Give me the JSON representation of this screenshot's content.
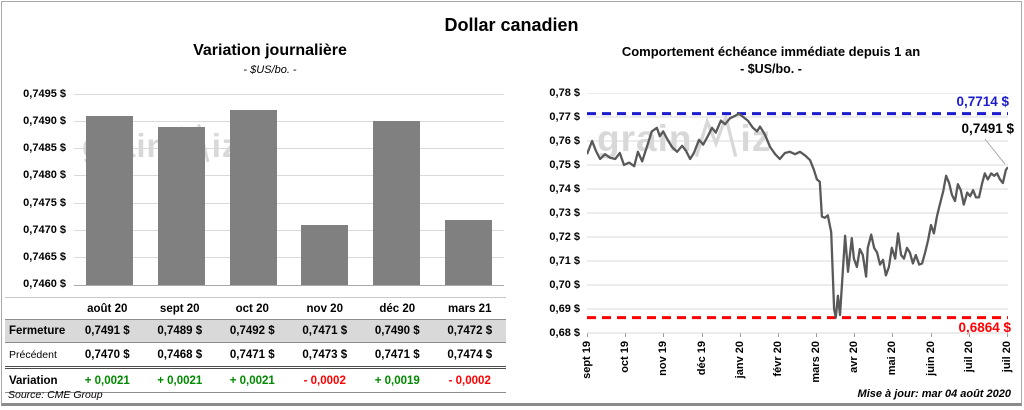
{
  "title": "Dollar canadien",
  "source": "Source: CME Group",
  "updated": "Mise à jour: mar 04 août 2020",
  "watermark": {
    "pre": "grain",
    "post": "iz"
  },
  "colors": {
    "bar": "#808080",
    "line": "#595959",
    "grid": "#D9D9D9",
    "max_line": "#1C1CCE",
    "min_line": "#FF0000",
    "positive": "#008A00",
    "negative": "#FF0000",
    "table_shade": "#D9D9D9"
  },
  "table": {
    "rows": [
      {
        "label": "Fermeture",
        "values": [
          "0,7491 $",
          "0,7489 $",
          "0,7492 $",
          "0,7471 $",
          "0,7490 $",
          "0,7472 $"
        ]
      },
      {
        "label": "Précédent",
        "values": [
          "0,7470 $",
          "0,7468 $",
          "0,7471 $",
          "0,7473 $",
          "0,7471 $",
          "0,7474 $"
        ]
      },
      {
        "label": "Variation",
        "values": [
          {
            "text": "+ 0,0021",
            "trend": "up"
          },
          {
            "text": "+ 0,0021",
            "trend": "up"
          },
          {
            "text": "+ 0,0021",
            "trend": "up"
          },
          {
            "text": "- 0,0002",
            "trend": "down"
          },
          {
            "text": "+ 0,0019",
            "trend": "up"
          },
          {
            "text": "- 0,0002",
            "trend": "down"
          }
        ]
      }
    ]
  },
  "chart_data": [
    {
      "type": "bar",
      "title": "Variation journalière",
      "subtitle": "- $US/bo. -",
      "categories": [
        "août 20",
        "sept 20",
        "oct 20",
        "nov 20",
        "déc 20",
        "mars 21"
      ],
      "values": [
        0.7491,
        0.7489,
        0.7492,
        0.7471,
        0.749,
        0.7472
      ],
      "ylim": [
        0.746,
        0.7495
      ],
      "ytick_labels": [
        "0,7495 $",
        "0,7490 $",
        "0,7485 $",
        "0,7480 $",
        "0,7475 $",
        "0,7470 $",
        "0,7465 $",
        "0,7460 $"
      ],
      "grid": true,
      "legend": false
    },
    {
      "type": "line",
      "title": "Comportement échéance immédiate depuis 1 an",
      "subtitle": "- $US/bo. -",
      "x_ticks": [
        "sept 19",
        "oct 19",
        "nov 19",
        "déc 19",
        "janv 20",
        "févr 20",
        "mars 20",
        "avr 20",
        "mai 20",
        "juin 20",
        "juil 20",
        "juil 20"
      ],
      "ylim": [
        0.68,
        0.78
      ],
      "ytick_labels": [
        "0,78 $",
        "0,77 $",
        "0,76 $",
        "0,75 $",
        "0,74 $",
        "0,73 $",
        "0,72 $",
        "0,71 $",
        "0,70 $",
        "0,69 $",
        "0,68 $"
      ],
      "max_line": {
        "value": 0.7714,
        "label": "0,7714 $"
      },
      "min_line": {
        "value": 0.6864,
        "label": "0,6864 $"
      },
      "last_point": {
        "value": 0.7491,
        "label": "0,7491 $"
      },
      "grid": true,
      "legend": false,
      "series": [
        [
          0,
          0.7545
        ],
        [
          0.012,
          0.76
        ],
        [
          0.021,
          0.756
        ],
        [
          0.031,
          0.7525
        ],
        [
          0.043,
          0.7545
        ],
        [
          0.055,
          0.753
        ],
        [
          0.067,
          0.7525
        ],
        [
          0.078,
          0.755
        ],
        [
          0.088,
          0.75
        ],
        [
          0.1,
          0.751
        ],
        [
          0.112,
          0.7495
        ],
        [
          0.121,
          0.7555
        ],
        [
          0.131,
          0.7515
        ],
        [
          0.143,
          0.758
        ],
        [
          0.154,
          0.764
        ],
        [
          0.166,
          0.7655
        ],
        [
          0.173,
          0.762
        ],
        [
          0.181,
          0.764
        ],
        [
          0.19,
          0.761
        ],
        [
          0.202,
          0.7575
        ],
        [
          0.214,
          0.7555
        ],
        [
          0.226,
          0.758
        ],
        [
          0.235,
          0.756
        ],
        [
          0.245,
          0.7525
        ],
        [
          0.254,
          0.755
        ],
        [
          0.266,
          0.7605
        ],
        [
          0.276,
          0.7585
        ],
        [
          0.287,
          0.762
        ],
        [
          0.297,
          0.7655
        ],
        [
          0.306,
          0.7635
        ],
        [
          0.318,
          0.7685
        ],
        [
          0.328,
          0.767
        ],
        [
          0.34,
          0.7695
        ],
        [
          0.352,
          0.7705
        ],
        [
          0.361,
          0.7714
        ],
        [
          0.371,
          0.77
        ],
        [
          0.382,
          0.7685
        ],
        [
          0.394,
          0.7655
        ],
        [
          0.404,
          0.764
        ],
        [
          0.411,
          0.766
        ],
        [
          0.423,
          0.7625
        ],
        [
          0.435,
          0.7575
        ],
        [
          0.447,
          0.7545
        ],
        [
          0.458,
          0.7525
        ],
        [
          0.47,
          0.755
        ],
        [
          0.482,
          0.7555
        ],
        [
          0.494,
          0.7545
        ],
        [
          0.506,
          0.7555
        ],
        [
          0.518,
          0.754
        ],
        [
          0.53,
          0.752
        ],
        [
          0.539,
          0.748
        ],
        [
          0.546,
          0.744
        ],
        [
          0.553,
          0.743
        ],
        [
          0.558,
          0.7285
        ],
        [
          0.565,
          0.728
        ],
        [
          0.572,
          0.729
        ],
        [
          0.58,
          0.722
        ],
        [
          0.587,
          0.69
        ],
        [
          0.591,
          0.6864
        ],
        [
          0.596,
          0.6955
        ],
        [
          0.601,
          0.6875
        ],
        [
          0.613,
          0.7205
        ],
        [
          0.62,
          0.7055
        ],
        [
          0.629,
          0.7195
        ],
        [
          0.634,
          0.711
        ],
        [
          0.641,
          0.7075
        ],
        [
          0.648,
          0.715
        ],
        [
          0.655,
          0.7125
        ],
        [
          0.663,
          0.7035
        ],
        [
          0.667,
          0.7155
        ],
        [
          0.675,
          0.721
        ],
        [
          0.682,
          0.7155
        ],
        [
          0.689,
          0.7135
        ],
        [
          0.696,
          0.7085
        ],
        [
          0.703,
          0.7105
        ],
        [
          0.71,
          0.704
        ],
        [
          0.717,
          0.7075
        ],
        [
          0.724,
          0.7155
        ],
        [
          0.732,
          0.711
        ],
        [
          0.739,
          0.7215
        ],
        [
          0.746,
          0.7125
        ],
        [
          0.753,
          0.711
        ],
        [
          0.76,
          0.7155
        ],
        [
          0.767,
          0.7135
        ],
        [
          0.774,
          0.709
        ],
        [
          0.781,
          0.7125
        ],
        [
          0.789,
          0.7085
        ],
        [
          0.796,
          0.709
        ],
        [
          0.803,
          0.7135
        ],
        [
          0.81,
          0.7185
        ],
        [
          0.817,
          0.725
        ],
        [
          0.824,
          0.7215
        ],
        [
          0.831,
          0.7285
        ],
        [
          0.838,
          0.7335
        ],
        [
          0.846,
          0.739
        ],
        [
          0.853,
          0.7455
        ],
        [
          0.86,
          0.7425
        ],
        [
          0.867,
          0.7375
        ],
        [
          0.874,
          0.735
        ],
        [
          0.881,
          0.742
        ],
        [
          0.888,
          0.7395
        ],
        [
          0.895,
          0.7335
        ],
        [
          0.903,
          0.7385
        ],
        [
          0.91,
          0.737
        ],
        [
          0.917,
          0.7395
        ],
        [
          0.924,
          0.7365
        ],
        [
          0.931,
          0.7365
        ],
        [
          0.938,
          0.742
        ],
        [
          0.945,
          0.7465
        ],
        [
          0.952,
          0.744
        ],
        [
          0.96,
          0.7465
        ],
        [
          0.967,
          0.7455
        ],
        [
          0.974,
          0.7465
        ],
        [
          0.981,
          0.744
        ],
        [
          0.988,
          0.7425
        ],
        [
          0.995,
          0.748
        ],
        [
          1,
          0.7491
        ]
      ]
    }
  ]
}
